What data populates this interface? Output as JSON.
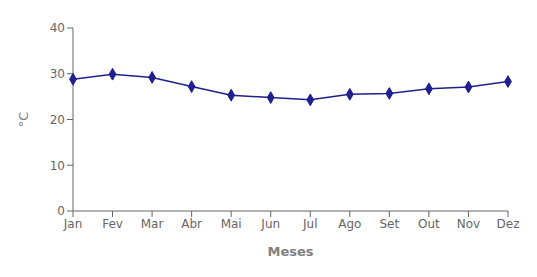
{
  "chart_data": {
    "type": "line",
    "categories": [
      "Jan",
      "Fev",
      "Mar",
      "Abr",
      "Mai",
      "Jun",
      "Jul",
      "Ago",
      "Set",
      "Out",
      "Nov",
      "Dez"
    ],
    "values": [
      28.8,
      29.9,
      29.2,
      27.2,
      25.3,
      24.8,
      24.3,
      25.5,
      25.7,
      26.7,
      27.1,
      28.3
    ],
    "color": "#1F1F8F",
    "marker": "diamond",
    "xlabel": "Meses",
    "ylabel": "°C",
    "ylim": [
      0,
      40
    ],
    "yticks": [
      0,
      10,
      20,
      30,
      40
    ],
    "grid": false
  }
}
